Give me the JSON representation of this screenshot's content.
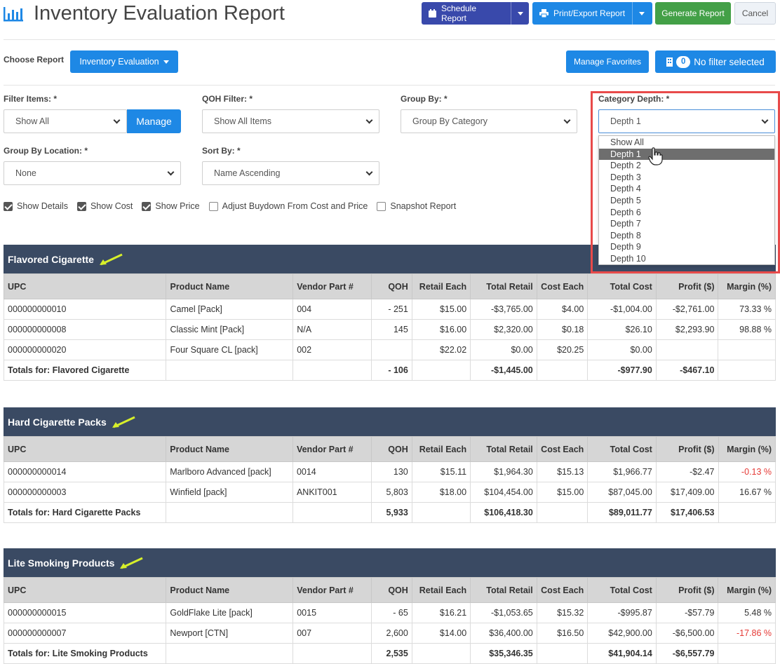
{
  "page": {
    "title": "Inventory Evaluation Report"
  },
  "header": {
    "schedule_label": "Schedule Report",
    "print_label": "Print/Export Report",
    "generate_label": "Generate Report",
    "cancel_label": "Cancel"
  },
  "choose": {
    "label": "Choose Report",
    "report_value": "Inventory Evaluation",
    "manage_favorites": "Manage Favorites",
    "filter_count": "0",
    "filter_label": "No filter selected"
  },
  "filters": {
    "filter_items_label": "Filter Items: *",
    "filter_items_value": "Show All",
    "manage_label": "Manage",
    "qoh_label": "QOH Filter: *",
    "qoh_value": "Show All Items",
    "group_by_label": "Group By: *",
    "group_by_value": "Group By Category",
    "depth_label": "Category Depth: *",
    "depth_value": "Depth 1",
    "group_loc_label": "Group By Location: *",
    "group_loc_value": "None",
    "sort_label": "Sort By: *",
    "sort_value": "Name Ascending"
  },
  "depth_options": [
    "Show All",
    "Depth 1",
    "Depth 2",
    "Depth 3",
    "Depth 4",
    "Depth 5",
    "Depth 6",
    "Depth 7",
    "Depth 8",
    "Depth 9",
    "Depth 10"
  ],
  "checkboxes": [
    {
      "label": "Show Details",
      "checked": true
    },
    {
      "label": "Show Cost",
      "checked": true
    },
    {
      "label": "Show Price",
      "checked": true
    },
    {
      "label": "Adjust Buydown From Cost and Price",
      "checked": false
    },
    {
      "label": "Snapshot Report",
      "checked": false
    }
  ],
  "columns": [
    "UPC",
    "Product Name",
    "Vendor Part #",
    "QOH",
    "Retail Each",
    "Total Retail",
    "Cost Each",
    "Total Cost",
    "Profit ($)",
    "Margin (%)"
  ],
  "groups": [
    {
      "name": "Flavored Cigarette",
      "rows": [
        [
          "000000000010",
          "Camel [Pack]",
          "004",
          "- 251",
          "$15.00",
          "-$3,765.00",
          "$4.00",
          "-$1,004.00",
          "-$2,761.00",
          "73.33 %"
        ],
        [
          "000000000008",
          "Classic Mint [Pack]",
          "N/A",
          "145",
          "$16.00",
          "$2,320.00",
          "$0.18",
          "$26.10",
          "$2,293.90",
          "98.88 %"
        ],
        [
          "000000000020",
          "Four Square CL [pack]",
          "002",
          "",
          "$22.02",
          "$0.00",
          "$20.25",
          "$0.00",
          "",
          ""
        ]
      ],
      "totals": {
        "label": "Totals for: Flavored Cigarette",
        "qoh": "- 106",
        "total_retail": "-$1,445.00",
        "total_cost": "-$977.90",
        "profit": "-$467.10"
      }
    },
    {
      "name": "Hard Cigarette Packs",
      "rows": [
        [
          "000000000014",
          "Marlboro Advanced [pack]",
          "0014",
          "130",
          "$15.11",
          "$1,964.30",
          "$15.13",
          "$1,966.77",
          "-$2.47",
          "-0.13 %"
        ],
        [
          "000000000003",
          "Winfield [pack]",
          "ANKIT001",
          "5,803",
          "$18.00",
          "$104,454.00",
          "$15.00",
          "$87,045.00",
          "$17,409.00",
          "16.67 %"
        ]
      ],
      "totals": {
        "label": "Totals for: Hard Cigarette Packs",
        "qoh": "5,933",
        "total_retail": "$106,418.30",
        "total_cost": "$89,011.77",
        "profit": "$17,406.53"
      }
    },
    {
      "name": "Lite Smoking Products",
      "rows": [
        [
          "000000000015",
          "GoldFlake Lite [pack]",
          "0015",
          "- 65",
          "$16.21",
          "-$1,053.65",
          "$15.32",
          "-$995.87",
          "-$57.79",
          "5.48 %"
        ],
        [
          "000000000007",
          "Newport [CTN]",
          "007",
          "2,600",
          "$14.00",
          "$36,400.00",
          "$16.50",
          "$42,900.00",
          "-$6,500.00",
          "-17.86 %"
        ]
      ],
      "totals": {
        "label": "Totals for: Lite Smoking Products",
        "qoh": "2,535",
        "total_retail": "$35,346.35",
        "total_cost": "$41,904.14",
        "profit": "-$6,557.79"
      }
    }
  ],
  "colors": {
    "primary": "#1e88e5",
    "schedule": "#3949ab",
    "generate": "#43a047",
    "header_bg": "#3a4a63",
    "highlight": "#e84a4a",
    "negative": "#e53935"
  }
}
